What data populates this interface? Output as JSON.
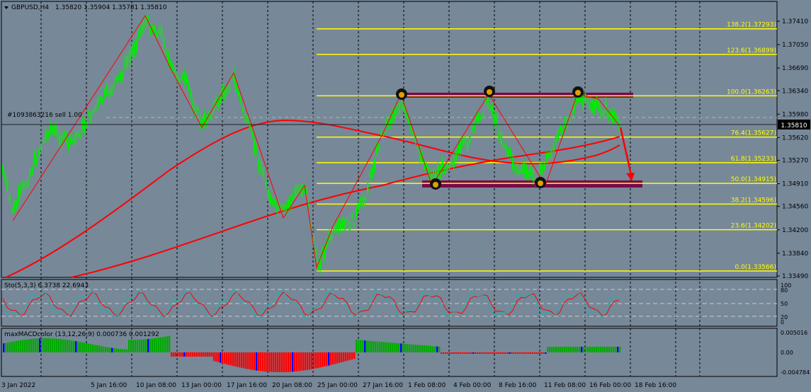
{
  "header": {
    "symbol": "GBPUSD,H4",
    "ohlc": "1.35820 1.35904 1.35781 1.35810",
    "menu_icon": "triangle-down-icon"
  },
  "annotations": {
    "sell_label": "#1093863216 sell 1.00"
  },
  "colors": {
    "background": "#778899",
    "candle": "#00ee00",
    "ma": "#ff0000",
    "fibo": "#ffff00",
    "zigzag": "#ff0000",
    "zone": "#7a0a4a",
    "grid": "#000000",
    "macd_up": "#00aa00",
    "macd_down": "#ff0000",
    "macd_blue": "#0000ff"
  },
  "price_axis": {
    "labels": [
      "1.37410",
      "1.37050",
      "1.36690",
      "1.36340",
      "1.35980",
      "1.35620",
      "1.35270",
      "1.34910",
      "1.34560",
      "1.34200",
      "1.33840",
      "1.33490"
    ],
    "current_price": "1.35810"
  },
  "fibo_levels": [
    {
      "label": "138.2(1.37293)",
      "price": 1.37293
    },
    {
      "label": "123.6(1.36899)",
      "price": 1.36899
    },
    {
      "label": "100.0(1.36263)",
      "price": 1.36263
    },
    {
      "label": "76.4(1.35627)",
      "price": 1.35627
    },
    {
      "label": "61.8(1.35233)",
      "price": 1.35233
    },
    {
      "label": "50.0(1.34915)",
      "price": 1.34915
    },
    {
      "label": "38.2(1.34596)",
      "price": 1.34596
    },
    {
      "label": "23.6(1.34202)",
      "price": 1.34202
    },
    {
      "label": "0.0(1.33566)",
      "price": 1.33566
    }
  ],
  "time_axis": {
    "labels": [
      "3 Jan 2022",
      "5 Jan 16:00",
      "10 Jan 08:00",
      "13 Jan 00:00",
      "17 Jan 16:00",
      "20 Jan 08:00",
      "25 Jan 00:00",
      "27 Jan 16:00",
      "1 Feb 08:00",
      "4 Feb 00:00",
      "8 Feb 16:00",
      "11 Feb 08:00",
      "16 Feb 00:00",
      "18 Feb 16:00"
    ]
  },
  "stochastic": {
    "title": "Sto(5,3,3) 6.3738 22.6943",
    "levels": [
      "100",
      "80",
      "50",
      "20",
      "0"
    ]
  },
  "macd": {
    "title": "maxMACDcolor (13,12,26,9) 0.000736 0.001292",
    "levels": [
      "0.005016",
      "0.00",
      "-0.004784"
    ]
  }
}
